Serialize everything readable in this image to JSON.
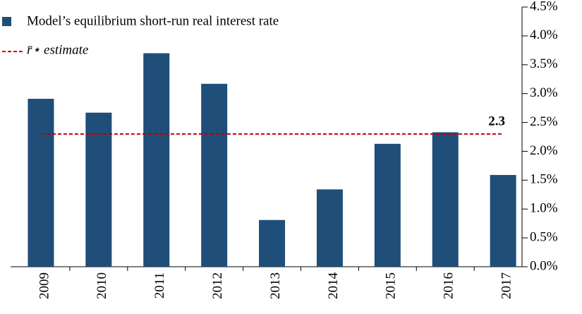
{
  "chart_data": {
    "type": "bar",
    "categories": [
      "2009",
      "2010",
      "2011",
      "2012",
      "2013",
      "2014",
      "2015",
      "2016",
      "2017"
    ],
    "series": [
      {
        "name": "Model’s equilibrium short-run real interest rate",
        "color": "#1f4e79",
        "values": [
          2.91,
          2.67,
          3.7,
          3.17,
          0.81,
          1.34,
          2.13,
          2.33,
          1.59
        ]
      }
    ],
    "reference": {
      "name": "r̄⋆ estimate",
      "value": 2.3,
      "color": "#c00000"
    },
    "ylim": [
      0,
      4.5
    ],
    "yticks": [
      {
        "value": 0,
        "label": "0.0%"
      },
      {
        "value": 0.5,
        "label": "0.5%"
      },
      {
        "value": 1,
        "label": "1.0%"
      },
      {
        "value": 1.5,
        "label": "1.5%"
      },
      {
        "value": 2,
        "label": "2.0%"
      },
      {
        "value": 2.5,
        "label": "2.5%"
      },
      {
        "value": 3,
        "label": "3.0%"
      },
      {
        "value": 3.5,
        "label": "3.5%"
      },
      {
        "value": 4,
        "label": "4.0%"
      },
      {
        "value": 4.5,
        "label": "4.5%"
      }
    ],
    "y_axis_side": "right",
    "legend": "upper left"
  }
}
